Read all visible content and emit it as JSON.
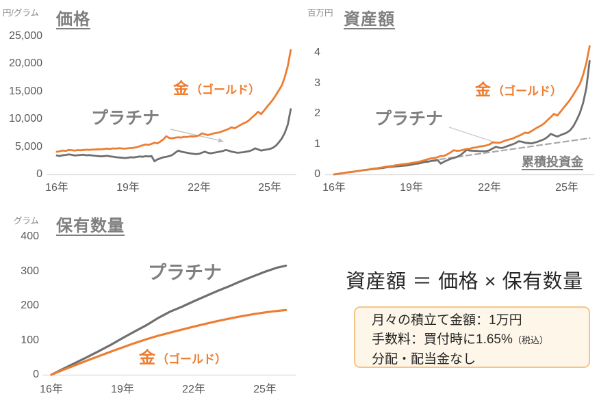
{
  "formula": "資産額 ＝ 価格 × 保有数量",
  "info_box": {
    "line1": "月々の積立て金額：1万円",
    "line2_main": "手数料：買付時に1.65%",
    "line2_sub": "（税込）",
    "line3": "分配・配当金なし"
  },
  "colors": {
    "gold": "#ED7D31",
    "platinum": "#6F6F6F",
    "cumulative_dashed": "#A8A8A8",
    "gray_label": "#7F7F7F",
    "tick_text": "#595959",
    "axis_line": "#D9D9D9",
    "arrow": "#BFBFBF",
    "box_border": "#F5C588",
    "box_bg": "#FDF6E9",
    "formula_text": "#262626"
  },
  "chart_data": [
    {
      "id": "price",
      "type": "line",
      "title": "価格",
      "unit": "円/グラム",
      "x_ticks": [
        "16年",
        "19年",
        "22年",
        "25年"
      ],
      "y_ticks": [
        "0",
        "5,000",
        "10,000",
        "15,000",
        "20,000",
        "25,000"
      ],
      "x_range": [
        16,
        25.875
      ],
      "ylim": [
        0,
        25000
      ],
      "x": {
        "start": 16,
        "step": 0.125,
        "count": 80
      },
      "labels": {
        "gold_main": "金",
        "gold_sub": "（ゴールド）",
        "platinum": "プラチナ"
      },
      "series": [
        {
          "key": "platinum",
          "name": "プラチナ",
          "color": "#6F6F6F",
          "width": 2.8,
          "values": [
            3420,
            3330,
            3460,
            3520,
            3610,
            3540,
            3420,
            3460,
            3510,
            3560,
            3450,
            3500,
            3410,
            3360,
            3300,
            3260,
            3310,
            3360,
            3250,
            3200,
            3110,
            3060,
            3010,
            2960,
            3010,
            3110,
            3060,
            3150,
            3240,
            3190,
            3290,
            3240,
            3300,
            2380,
            2720,
            2910,
            3090,
            3190,
            3310,
            3520,
            3910,
            4310,
            4120,
            4010,
            3910,
            3810,
            3720,
            3660,
            3710,
            3920,
            4110,
            3910,
            3810,
            3910,
            4010,
            4110,
            4210,
            4410,
            4310,
            4110,
            4010,
            3910,
            3960,
            4010,
            4110,
            4210,
            4410,
            4720,
            4510,
            4310,
            4420,
            4510,
            4610,
            4810,
            5210,
            5810,
            6510,
            7510,
            9010,
            11800
          ]
        },
        {
          "key": "gold",
          "name": "金（ゴールド）",
          "color": "#ED7D31",
          "width": 2.8,
          "values": [
            4100,
            4180,
            4320,
            4250,
            4420,
            4380,
            4300,
            4390,
            4360,
            4420,
            4470,
            4430,
            4510,
            4490,
            4560,
            4530,
            4610,
            4660,
            4600,
            4700,
            4670,
            4740,
            4690,
            4650,
            4720,
            4760,
            4820,
            4910,
            5100,
            5260,
            5420,
            5350,
            5520,
            5730,
            5620,
            5950,
            6350,
            6900,
            6580,
            6520,
            6640,
            6720,
            6660,
            6810,
            6760,
            6890,
            6840,
            6910,
            7050,
            7420,
            7280,
            7120,
            7260,
            7430,
            7520,
            7610,
            7820,
            8010,
            8230,
            8520,
            8340,
            8620,
            8940,
            9230,
            9460,
            9830,
            10340,
            10820,
            11340,
            10920,
            11560,
            12240,
            12860,
            13540,
            14360,
            15240,
            16100,
            17600,
            19600,
            22500
          ]
        }
      ]
    },
    {
      "id": "asset",
      "type": "line",
      "title": "資産額",
      "unit": "百万円",
      "x_ticks": [
        "16年",
        "19年",
        "22年",
        "25年"
      ],
      "y_ticks": [
        "0",
        "1",
        "2",
        "3",
        "4"
      ],
      "x_range": [
        16,
        25.875
      ],
      "ylim": [
        0,
        4.3
      ],
      "x": {
        "start": 16,
        "step": 0.125,
        "count": 80
      },
      "labels": {
        "gold_main": "金",
        "gold_sub": "（ゴールド）",
        "platinum": "プラチナ",
        "cumulative": "累積投資金"
      },
      "series": [
        {
          "key": "cumulative",
          "name": "累積投資金",
          "color": "#A8A8A8",
          "width": 2.2,
          "dash": true,
          "x_values": [
            16,
            25.875
          ],
          "values": [
            0,
            1.19
          ]
        },
        {
          "key": "platinum",
          "name": "プラチナ",
          "color": "#6F6F6F",
          "width": 2.8,
          "values": [
            0,
            0.014,
            0.03,
            0.046,
            0.062,
            0.075,
            0.087,
            0.103,
            0.12,
            0.136,
            0.146,
            0.163,
            0.174,
            0.186,
            0.197,
            0.209,
            0.227,
            0.246,
            0.252,
            0.262,
            0.269,
            0.28,
            0.29,
            0.299,
            0.319,
            0.345,
            0.354,
            0.38,
            0.406,
            0.414,
            0.442,
            0.45,
            0.473,
            0.352,
            0.419,
            0.464,
            0.509,
            0.54,
            0.576,
            0.628,
            0.714,
            0.804,
            0.782,
            0.776,
            0.771,
            0.765,
            0.762,
            0.764,
            0.789,
            0.85,
            0.906,
            0.876,
            0.868,
            0.906,
            0.944,
            0.983,
            1.022,
            1.086,
            1.076,
            1.04,
            1.029,
            1.018,
            1.046,
            1.074,
            1.116,
            1.158,
            1.229,
            1.331,
            1.286,
            1.243,
            1.29,
            1.331,
            1.375,
            1.451,
            1.587,
            1.786,
            2.018,
            2.345,
            2.831,
            3.727
          ]
        },
        {
          "key": "gold",
          "name": "金（ゴールド）",
          "color": "#ED7D31",
          "width": 2.8,
          "values": [
            0,
            0.015,
            0.031,
            0.045,
            0.062,
            0.076,
            0.089,
            0.106,
            0.12,
            0.137,
            0.153,
            0.166,
            0.184,
            0.198,
            0.216,
            0.23,
            0.249,
            0.266,
            0.277,
            0.299,
            0.311,
            0.331,
            0.342,
            0.354,
            0.374,
            0.392,
            0.412,
            0.435,
            0.467,
            0.497,
            0.527,
            0.535,
            0.567,
            0.604,
            0.607,
            0.658,
            0.718,
            0.796,
            0.773,
            0.781,
            0.81,
            0.835,
            0.842,
            0.876,
            0.885,
            0.917,
            0.925,
            0.949,
            0.983,
            1.05,
            1.045,
            1.037,
            1.072,
            1.112,
            1.141,
            1.169,
            1.217,
            1.261,
            1.311,
            1.373,
            1.358,
            1.419,
            1.487,
            1.55,
            1.604,
            1.682,
            1.785,
            1.883,
            1.989,
            1.93,
            2.058,
            2.195,
            2.322,
            2.46,
            2.625,
            2.801,
            2.975,
            3.268,
            3.656,
            4.214
          ]
        }
      ]
    },
    {
      "id": "holdings",
      "type": "line",
      "title": "保有数量",
      "unit": "グラム",
      "x_ticks": [
        "16年",
        "19年",
        "22年",
        "25年"
      ],
      "y_ticks": [
        "0",
        "100",
        "200",
        "300",
        "400"
      ],
      "x_range": [
        16,
        25.875
      ],
      "ylim": [
        0,
        400
      ],
      "x_values": [
        16,
        16.5,
        17,
        17.5,
        18,
        18.5,
        19,
        19.5,
        20,
        20.5,
        21,
        21.5,
        22,
        22.5,
        23,
        23.5,
        24,
        24.5,
        25,
        25.5,
        25.875
      ],
      "labels": {
        "gold_main": "金",
        "gold_sub": "（ゴールド）",
        "platinum": "プラチナ"
      },
      "series": [
        {
          "key": "platinum",
          "name": "プラチナ",
          "color": "#6F6F6F",
          "width": 3.2,
          "values": [
            0,
            17.2,
            34,
            50.9,
            68.6,
            86.6,
            106.1,
            125.2,
            143.4,
            164.6,
            182.7,
            197.1,
            212.8,
            227.9,
            242.8,
            256.6,
            271.5,
            285.1,
            298.4,
            310,
            315.9
          ]
        },
        {
          "key": "gold",
          "name": "金（ゴールド）",
          "color": "#ED7D31",
          "width": 3.2,
          "values": [
            0,
            14,
            27.5,
            40.9,
            53.9,
            66.7,
            79.2,
            91.5,
            102.7,
            113.1,
            122,
            130.9,
            139.5,
            147.7,
            155.6,
            162.8,
            169.6,
            175.4,
            180.5,
            184.8,
            187.3
          ]
        }
      ]
    }
  ]
}
